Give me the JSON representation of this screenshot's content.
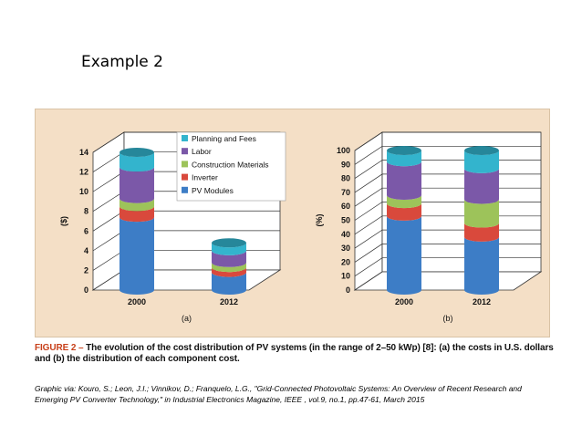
{
  "slide": {
    "title": "Example 2",
    "caption_label": "FIGURE 2 – ",
    "caption_text": "The evolution of the cost distribution of PV systems (in the range of 2–50 kWp) [8]: (a) the costs in U.S. dollars and (b) the distribution of each component cost.",
    "credit": "Graphic via: Kouro, S.; Leon, J.I.; Vinnikov, D.; Franquelo, L.G., \"Grid-Connected Photovoltaic Systems: An Overview of Recent Research and Emerging PV Converter Technology,\" in Industrial Electronics Magazine, IEEE , vol.9, no.1, pp.47-61, March 2015"
  },
  "chart_data": [
    {
      "type": "bar",
      "stacked": true,
      "panel_label": "(a)",
      "ylabel": "($)",
      "ylim": [
        0,
        14
      ],
      "yticks": [
        0,
        2,
        4,
        6,
        8,
        10,
        12,
        14
      ],
      "categories": [
        "2000",
        "2012"
      ],
      "grid": true,
      "legend": "top-right",
      "series": [
        {
          "name": "PV Modules",
          "color": "#3d7dc6",
          "values": [
            7.4,
            1.8
          ]
        },
        {
          "name": "Inverter",
          "color": "#d9493c",
          "values": [
            1.1,
            0.5
          ]
        },
        {
          "name": "Construction Materials",
          "color": "#9dc35a",
          "values": [
            0.8,
            0.5
          ]
        },
        {
          "name": "Labor",
          "color": "#7b58a8",
          "values": [
            3.2,
            1.2
          ]
        },
        {
          "name": "Planning and Fees",
          "color": "#33b4cd",
          "values": [
            1.5,
            0.8
          ]
        }
      ]
    },
    {
      "type": "bar",
      "stacked": true,
      "panel_label": "(b)",
      "ylabel": "(%)",
      "ylim": [
        0,
        100
      ],
      "yticks": [
        0,
        10,
        20,
        30,
        40,
        50,
        60,
        70,
        80,
        90,
        100
      ],
      "categories": [
        "2000",
        "2012"
      ],
      "grid": true,
      "series": [
        {
          "name": "PV Modules",
          "color": "#3d7dc6",
          "values": [
            53,
            38
          ]
        },
        {
          "name": "Inverter",
          "color": "#d9493c",
          "values": [
            9,
            10
          ]
        },
        {
          "name": "Construction Materials",
          "color": "#9dc35a",
          "values": [
            6,
            17
          ]
        },
        {
          "name": "Labor",
          "color": "#7b58a8",
          "values": [
            24,
            22
          ]
        },
        {
          "name": "Planning and Fees",
          "color": "#33b4cd",
          "values": [
            8,
            13
          ]
        }
      ]
    }
  ]
}
